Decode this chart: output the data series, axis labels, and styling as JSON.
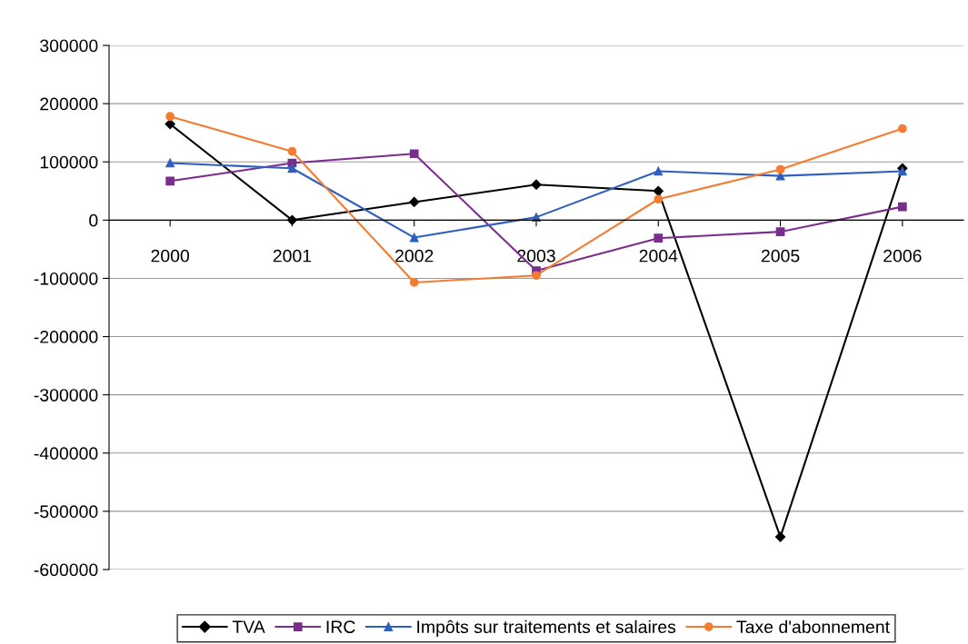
{
  "chart_data": {
    "type": "line",
    "categories": [
      "2000",
      "2001",
      "2002",
      "2003",
      "2004",
      "2005",
      "2006"
    ],
    "series": [
      {
        "name": "TVA",
        "color": "#000000",
        "marker": "diamond",
        "values": [
          165000,
          0,
          31000,
          61000,
          50000,
          -544000,
          89000
        ]
      },
      {
        "name": "IRC",
        "color": "#7b2d8e",
        "marker": "square",
        "values": [
          67000,
          98000,
          114000,
          -87000,
          -31000,
          -20000,
          23000
        ]
      },
      {
        "name": "Impôts sur traitements et salaires",
        "color": "#2e5fbf",
        "marker": "triangle",
        "values": [
          98000,
          89000,
          -30000,
          5000,
          84000,
          76000,
          84000
        ]
      },
      {
        "name": "Taxe d'abonnement",
        "color": "#f47c30",
        "marker": "circle",
        "values": [
          178000,
          118000,
          -107000,
          -95000,
          36000,
          87000,
          157000
        ]
      }
    ],
    "ylim": [
      -600000,
      300000
    ],
    "yticks": [
      -600000,
      -500000,
      -400000,
      -300000,
      -200000,
      -100000,
      0,
      100000,
      200000,
      300000
    ],
    "grid": "y",
    "legend": "bottom",
    "line_style": "solid"
  }
}
